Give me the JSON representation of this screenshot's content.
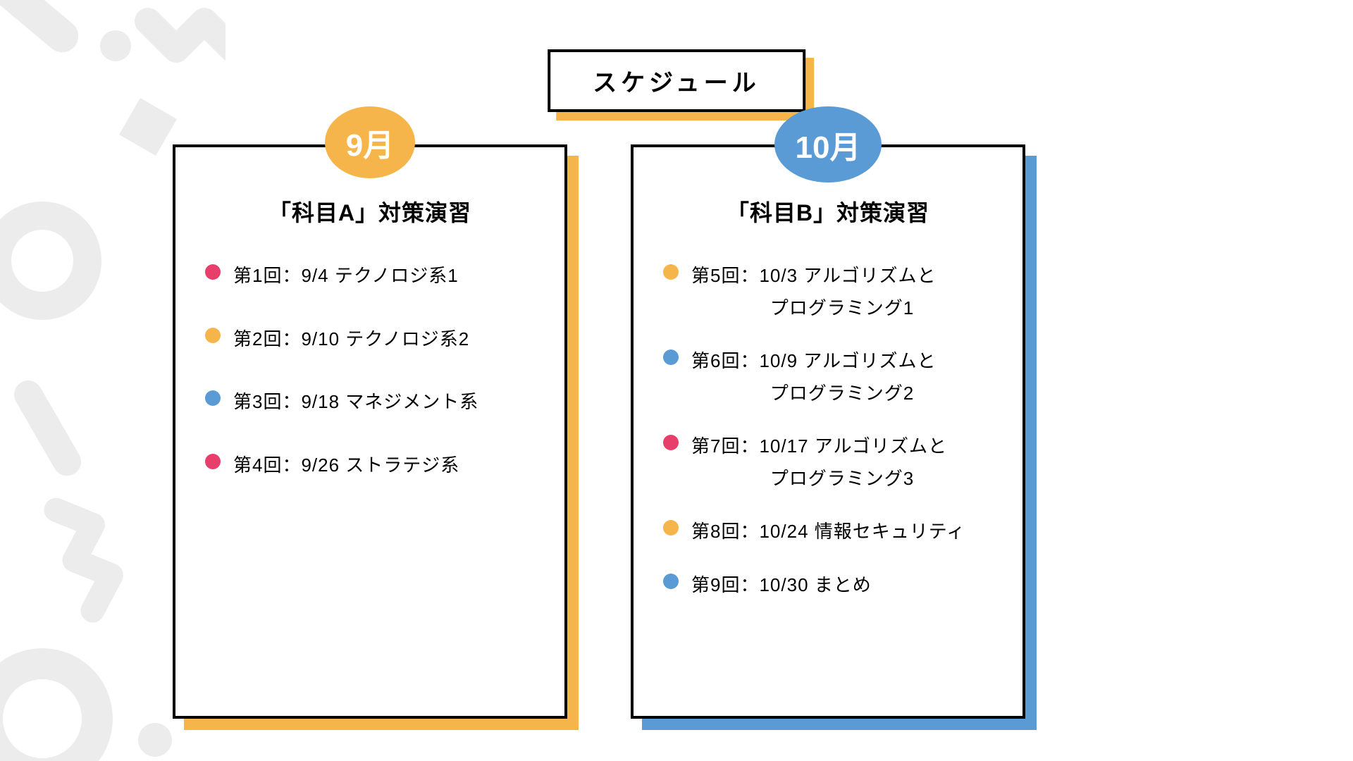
{
  "colors": {
    "orange": "#f6b54a",
    "blue": "#5b9bd5",
    "pink": "#e83e6b",
    "black": "#000000",
    "white": "#ffffff",
    "gray": "#ececec"
  },
  "title": "スケジュール",
  "title_shadow_color": "#f6b54a",
  "cards": {
    "left": {
      "badge": "9月",
      "badge_color": "#f6b54a",
      "shadow_color": "#f6b54a",
      "heading": "「科目A」対策演習",
      "items": [
        {
          "dot": "#e83e6b",
          "text": "第1回：9/4 テクノロジ系1"
        },
        {
          "dot": "#f6b54a",
          "text": "第2回：9/10 テクノロジ系2"
        },
        {
          "dot": "#5b9bd5",
          "text": "第3回：9/18 マネジメント系"
        },
        {
          "dot": "#e83e6b",
          "text": "第4回：9/26 ストラテジ系"
        }
      ]
    },
    "right": {
      "badge": "10月",
      "badge_color": "#5b9bd5",
      "shadow_color": "#5b9bd5",
      "heading": "「科目B」対策演習",
      "items": [
        {
          "dot": "#f6b54a",
          "text": "第5回：10/3 アルゴリズムと",
          "text2": "プログラミング1"
        },
        {
          "dot": "#5b9bd5",
          "text": "第6回：10/9 アルゴリズムと",
          "text2": "プログラミング2"
        },
        {
          "dot": "#e83e6b",
          "text": "第7回：10/17 アルゴリズムと",
          "text2": "プログラミング3"
        },
        {
          "dot": "#f6b54a",
          "text": "第8回：10/24 情報セキュリティ"
        },
        {
          "dot": "#5b9bd5",
          "text": "第9回：10/30 まとめ"
        }
      ]
    }
  }
}
